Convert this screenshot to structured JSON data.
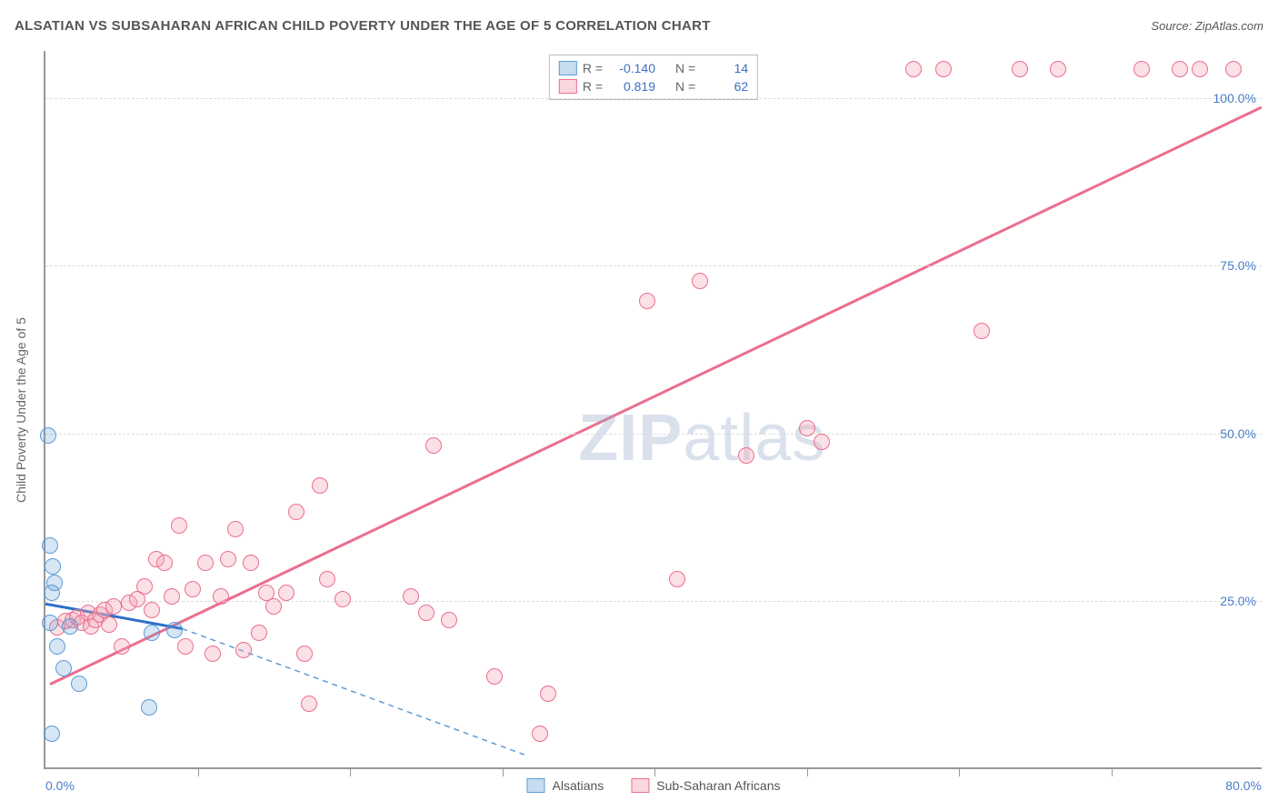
{
  "title": "ALSATIAN VS SUBSAHARAN AFRICAN CHILD POVERTY UNDER THE AGE OF 5 CORRELATION CHART",
  "source_label": "Source:",
  "source_name": "ZipAtlas.com",
  "ylabel": "Child Poverty Under the Age of 5",
  "watermark_bold": "ZIP",
  "watermark_rest": "atlas",
  "chart": {
    "type": "scatter",
    "xlim": [
      0,
      80
    ],
    "ylim": [
      0,
      107
    ],
    "xtick_labels": {
      "0": "0.0%",
      "80": "80.0%"
    },
    "xtick_marks": [
      10,
      20,
      30,
      40,
      50,
      60,
      70
    ],
    "ytick_labels": {
      "25": "25.0%",
      "50": "50.0%",
      "75": "75.0%",
      "100": "100.0%"
    },
    "gridlines_y": [
      25,
      50,
      75,
      100
    ],
    "background_color": "#ffffff",
    "grid_color": "#dddddd",
    "axis_color": "#999999",
    "marker_radius": 9,
    "series": {
      "blue": {
        "label": "Alsatians",
        "color_stroke": "#5b9bd5",
        "color_fill": "rgba(91,155,213,0.25)",
        "R": "-0.140",
        "N": "14",
        "trend": {
          "x1": 0,
          "y1": 24.5,
          "x2": 9,
          "y2": 20.8,
          "width": 3,
          "dash_ext": {
            "x2": 31.5,
            "y2": 2,
            "dash": "6 5"
          }
        },
        "points": [
          [
            0.2,
            49.5
          ],
          [
            0.3,
            33.0
          ],
          [
            0.5,
            30.0
          ],
          [
            0.6,
            27.5
          ],
          [
            0.4,
            26.0
          ],
          [
            0.3,
            21.5
          ],
          [
            1.6,
            21.0
          ],
          [
            0.8,
            18.0
          ],
          [
            1.2,
            14.8
          ],
          [
            2.2,
            12.5
          ],
          [
            7.0,
            20.0
          ],
          [
            6.8,
            9.0
          ],
          [
            0.4,
            5.0
          ],
          [
            8.5,
            20.5
          ]
        ]
      },
      "pink": {
        "label": "Sub-Saharan Africans",
        "color_stroke": "#ec6e8d",
        "color_fill": "rgba(244,166,182,0.35)",
        "R": "0.819",
        "N": "62",
        "trend": {
          "x1": 0.3,
          "y1": 12.5,
          "x2": 80,
          "y2": 98.6,
          "width": 3
        },
        "points": [
          [
            0.8,
            20.8
          ],
          [
            1.3,
            21.8
          ],
          [
            1.8,
            22.0
          ],
          [
            2.1,
            22.4
          ],
          [
            2.4,
            21.5
          ],
          [
            2.8,
            23.0
          ],
          [
            3.0,
            21.0
          ],
          [
            3.3,
            22.0
          ],
          [
            3.6,
            22.8
          ],
          [
            3.9,
            23.5
          ],
          [
            4.2,
            21.2
          ],
          [
            4.5,
            24.0
          ],
          [
            5.0,
            18.0
          ],
          [
            5.5,
            24.5
          ],
          [
            6.0,
            25.0
          ],
          [
            6.5,
            27.0
          ],
          [
            7.0,
            23.5
          ],
          [
            7.3,
            31.0
          ],
          [
            7.8,
            30.5
          ],
          [
            8.3,
            25.5
          ],
          [
            8.8,
            36.0
          ],
          [
            9.2,
            18.0
          ],
          [
            9.7,
            26.5
          ],
          [
            10.5,
            30.5
          ],
          [
            11.0,
            17.0
          ],
          [
            11.5,
            25.5
          ],
          [
            12.0,
            31.0
          ],
          [
            12.5,
            35.5
          ],
          [
            13.0,
            17.5
          ],
          [
            13.5,
            30.5
          ],
          [
            14.0,
            20.0
          ],
          [
            14.5,
            26.0
          ],
          [
            15.0,
            24.0
          ],
          [
            15.8,
            26.0
          ],
          [
            16.5,
            38.0
          ],
          [
            17.0,
            17.0
          ],
          [
            17.3,
            9.5
          ],
          [
            18.0,
            42.0
          ],
          [
            18.5,
            28.0
          ],
          [
            19.5,
            25.0
          ],
          [
            24.0,
            25.5
          ],
          [
            25.0,
            23.0
          ],
          [
            25.5,
            48.0
          ],
          [
            26.5,
            22.0
          ],
          [
            29.5,
            13.5
          ],
          [
            32.5,
            5.0
          ],
          [
            33.0,
            11.0
          ],
          [
            39.5,
            69.5
          ],
          [
            41.5,
            28.0
          ],
          [
            43.0,
            72.5
          ],
          [
            46.0,
            46.5
          ],
          [
            50.0,
            50.5
          ],
          [
            51.0,
            48.5
          ],
          [
            57.0,
            104.0
          ],
          [
            59.0,
            104.0
          ],
          [
            61.5,
            65.0
          ],
          [
            64.0,
            104.0
          ],
          [
            66.5,
            104.0
          ],
          [
            72.0,
            104.0
          ],
          [
            74.5,
            104.0
          ],
          [
            75.8,
            104.0
          ],
          [
            78.0,
            104.0
          ]
        ]
      }
    }
  },
  "legend_stats_labels": {
    "R": "R =",
    "N": "N ="
  }
}
